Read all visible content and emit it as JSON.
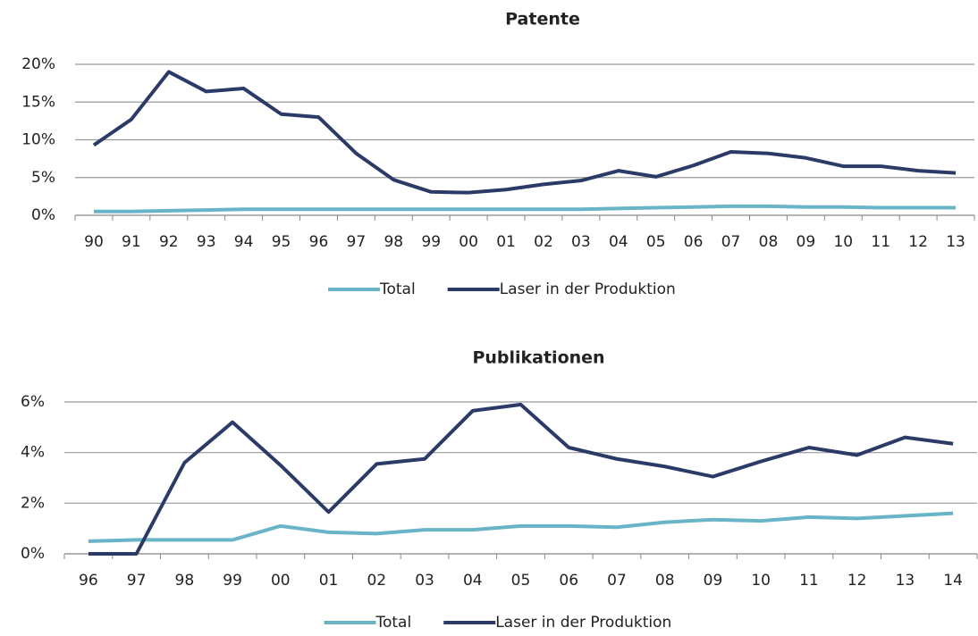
{
  "chart_data": [
    {
      "type": "line",
      "title": "Patente",
      "categories": [
        "90",
        "91",
        "92",
        "93",
        "94",
        "95",
        "96",
        "97",
        "98",
        "99",
        "00",
        "01",
        "02",
        "03",
        "04",
        "05",
        "06",
        "07",
        "08",
        "09",
        "10",
        "11",
        "12",
        "13"
      ],
      "series": [
        {
          "name": "Total",
          "color": "#6ab4c8",
          "values": [
            0.5,
            0.5,
            0.6,
            0.7,
            0.8,
            0.8,
            0.8,
            0.8,
            0.8,
            0.8,
            0.8,
            0.8,
            0.8,
            0.8,
            0.9,
            1.0,
            1.1,
            1.2,
            1.2,
            1.1,
            1.1,
            1.0,
            1.0,
            1.0
          ]
        },
        {
          "name": "Laser in der Produktion",
          "color": "#2b3a67",
          "values": [
            9.3,
            12.7,
            19.0,
            16.4,
            16.8,
            13.4,
            13.0,
            8.2,
            4.7,
            3.1,
            3.0,
            3.4,
            4.1,
            4.6,
            5.9,
            5.1,
            6.6,
            8.4,
            8.2,
            7.6,
            6.5,
            6.5,
            5.9,
            5.6
          ]
        }
      ],
      "ylim": [
        0,
        20
      ],
      "yticks": [
        {
          "value": 0,
          "label": "0%"
        },
        {
          "value": 5,
          "label": "5%"
        },
        {
          "value": 10,
          "label": "10%"
        },
        {
          "value": 15,
          "label": "15%"
        },
        {
          "value": 20,
          "label": "20%"
        }
      ],
      "grid": true,
      "legend": "bottom"
    },
    {
      "type": "line",
      "title": "Publikationen",
      "categories": [
        "96",
        "97",
        "98",
        "99",
        "00",
        "01",
        "02",
        "03",
        "04",
        "05",
        "06",
        "07",
        "08",
        "09",
        "10",
        "11",
        "12",
        "13",
        "14"
      ],
      "series": [
        {
          "name": "Total",
          "color": "#6ab4c8",
          "values": [
            0.5,
            0.55,
            0.55,
            0.55,
            1.1,
            0.85,
            0.8,
            0.95,
            0.95,
            1.1,
            1.1,
            1.05,
            1.25,
            1.35,
            1.3,
            1.45,
            1.4,
            1.5,
            1.6
          ]
        },
        {
          "name": "Laser in der Produktion",
          "color": "#2b3a67",
          "values": [
            0,
            0,
            3.6,
            5.2,
            3.5,
            1.65,
            3.55,
            3.75,
            5.65,
            5.9,
            4.2,
            3.75,
            3.45,
            3.05,
            3.65,
            4.2,
            3.9,
            4.6,
            4.35
          ]
        }
      ],
      "ylim": [
        0,
        6
      ],
      "yticks": [
        {
          "value": 0,
          "label": "0%"
        },
        {
          "value": 2,
          "label": "2%"
        },
        {
          "value": 4,
          "label": "4%"
        },
        {
          "value": 6,
          "label": "6%"
        }
      ],
      "grid": true,
      "legend": "bottom"
    }
  ]
}
